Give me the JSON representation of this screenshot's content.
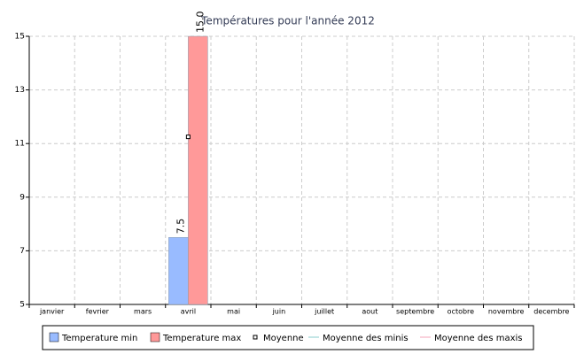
{
  "chart_data": {
    "type": "bar",
    "title": "Températures pour l'année 2012",
    "categories": [
      "janvier",
      "fevrier",
      "mars",
      "avril",
      "mai",
      "juin",
      "juillet",
      "aout",
      "septembre",
      "octobre",
      "novembre",
      "decembre"
    ],
    "series": [
      {
        "name": "Temperature min",
        "type": "bar",
        "color": "#99bbff",
        "values": [
          null,
          null,
          null,
          7.5,
          null,
          null,
          null,
          null,
          null,
          null,
          null,
          null
        ],
        "value_labels": [
          null,
          null,
          null,
          "7.5",
          null,
          null,
          null,
          null,
          null,
          null,
          null,
          null
        ]
      },
      {
        "name": "Temperature max",
        "type": "bar",
        "color": "#ff9999",
        "values": [
          null,
          null,
          null,
          15,
          null,
          null,
          null,
          null,
          null,
          null,
          null,
          null
        ],
        "value_labels": [
          null,
          null,
          null,
          "15.0",
          null,
          null,
          null,
          null,
          null,
          null,
          null,
          null
        ]
      },
      {
        "name": "Moyenne",
        "type": "point",
        "color": "#000000",
        "values": [
          null,
          null,
          null,
          11.25,
          null,
          null,
          null,
          null,
          null,
          null,
          null,
          null
        ]
      },
      {
        "name": "Moyenne des minis",
        "type": "line",
        "color": "#88cccc",
        "values": [
          null,
          null,
          null,
          null,
          null,
          null,
          null,
          null,
          null,
          null,
          null,
          null
        ]
      },
      {
        "name": "Moyenne des maxis",
        "type": "line",
        "color": "#f4a6b8",
        "values": [
          null,
          null,
          null,
          null,
          null,
          null,
          null,
          null,
          null,
          null,
          null,
          null
        ]
      }
    ],
    "ylim": [
      5,
      15
    ],
    "yticks": [
      5,
      7,
      9,
      11,
      13,
      15
    ],
    "grid": true,
    "legend": "bottom"
  }
}
